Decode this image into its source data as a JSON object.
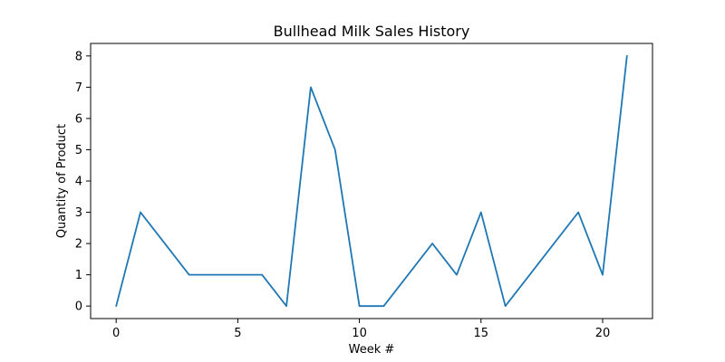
{
  "chart_data": {
    "type": "line",
    "title": "Bullhead Milk Sales History",
    "xlabel": "Week #",
    "ylabel": "Quantity of Product",
    "x": [
      0,
      1,
      2,
      3,
      4,
      5,
      6,
      7,
      8,
      9,
      10,
      11,
      12,
      13,
      14,
      15,
      16,
      17,
      18,
      19,
      20,
      21
    ],
    "series": [
      {
        "values": [
          0,
          3,
          2,
          1,
          1,
          1,
          1,
          0,
          7,
          5,
          0,
          0,
          1,
          2,
          1,
          3,
          0,
          1,
          2,
          3,
          1,
          8
        ],
        "color": "#1f77b4"
      }
    ],
    "xlim": [
      -1.05,
      22.05
    ],
    "ylim": [
      -0.4,
      8.4
    ],
    "xticks": [
      "0",
      "5",
      "10",
      "15",
      "20"
    ],
    "yticks": [
      "0",
      "1",
      "2",
      "3",
      "4",
      "5",
      "6",
      "7",
      "8"
    ],
    "grid": false,
    "legend": false
  }
}
